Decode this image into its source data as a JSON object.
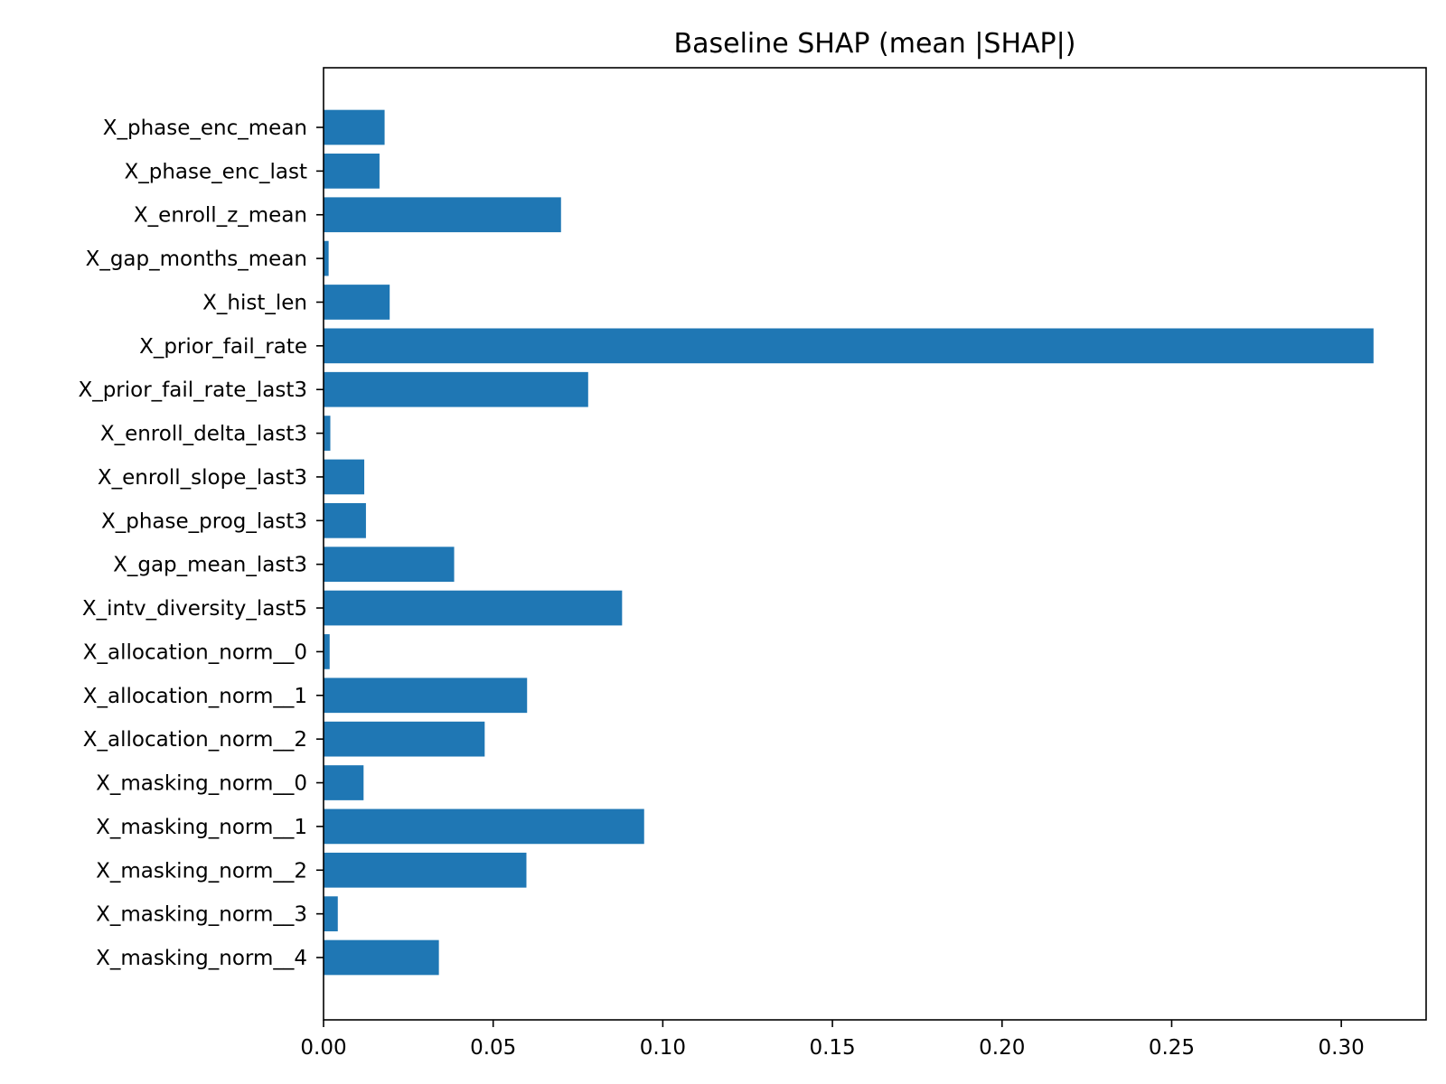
{
  "chart_data": {
    "type": "bar",
    "orientation": "horizontal",
    "title": "Baseline SHAP (mean |SHAP|)",
    "xlabel": "",
    "ylabel": "",
    "xlim": [
      0,
      0.325
    ],
    "xticks": [
      0.0,
      0.05,
      0.1,
      0.15,
      0.2,
      0.25,
      0.3
    ],
    "xtick_labels": [
      "0.00",
      "0.05",
      "0.10",
      "0.15",
      "0.20",
      "0.25",
      "0.30"
    ],
    "grid": false,
    "bar_color": "#1f77b4",
    "categories": [
      "X_phase_enc_mean",
      "X_phase_enc_last",
      "X_enroll_z_mean",
      "X_gap_months_mean",
      "X_hist_len",
      "X_prior_fail_rate",
      "X_prior_fail_rate_last3",
      "X_enroll_delta_last3",
      "X_enroll_slope_last3",
      "X_phase_prog_last3",
      "X_gap_mean_last3",
      "X_intv_diversity_last5",
      "X_allocation_norm__0",
      "X_allocation_norm__1",
      "X_allocation_norm__2",
      "X_masking_norm__0",
      "X_masking_norm__1",
      "X_masking_norm__2",
      "X_masking_norm__3",
      "X_masking_norm__4"
    ],
    "values": [
      0.018,
      0.0165,
      0.07,
      0.0015,
      0.0195,
      0.3095,
      0.078,
      0.002,
      0.012,
      0.0125,
      0.0385,
      0.088,
      0.0018,
      0.06,
      0.0475,
      0.0118,
      0.0945,
      0.0598,
      0.0042,
      0.034
    ]
  }
}
